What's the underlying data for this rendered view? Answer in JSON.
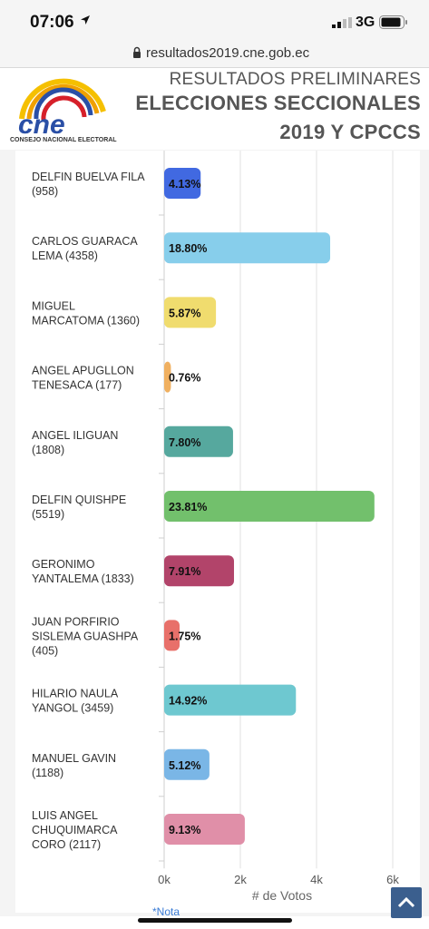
{
  "status_bar": {
    "time": "07:06",
    "network": "3G"
  },
  "browser": {
    "url": "resultados2019.cne.gob.ec"
  },
  "header": {
    "logo_text": "cne",
    "logo_subtitle": "CONSEJO NACIONAL ELECTORAL",
    "line1": "RESULTADOS PRELIMINARES",
    "line2": "ELECCIONES SECCIONALES",
    "line3": "2019 Y CPCCS"
  },
  "footer": {
    "note": "*Nota"
  },
  "icons": {
    "location": "location-arrow-icon",
    "signal": "signal-icon",
    "battery": "battery-icon",
    "lock": "lock-icon",
    "scroll_top": "chevron-up-icon"
  },
  "colors": {
    "header_text": "#555555",
    "accent": "#3b5f8e"
  },
  "chart_data": {
    "type": "bar",
    "orientation": "horizontal",
    "xlabel": "# de Votos",
    "xlim": [
      0,
      6000
    ],
    "xticks": [
      "0k",
      "2k",
      "4k",
      "6k"
    ],
    "grid": true,
    "categories": [
      {
        "lines": [
          "DELFIN BUELVA FILA",
          "(958)"
        ],
        "votes": 958,
        "label": "4.13%",
        "color": "#4169e1"
      },
      {
        "lines": [
          "CARLOS GUARACA",
          "LEMA (4358)"
        ],
        "votes": 4358,
        "label": "18.80%",
        "color": "#87ceeb"
      },
      {
        "lines": [
          "MIGUEL",
          "MARCATOMA (1360)"
        ],
        "votes": 1360,
        "label": "5.87%",
        "color": "#f0dc6e"
      },
      {
        "lines": [
          "ANGEL APUGLLON",
          "TENESACA (177)"
        ],
        "votes": 177,
        "label": "0.76%",
        "color": "#f0b060"
      },
      {
        "lines": [
          "ANGEL ILIGUAN",
          "(1808)"
        ],
        "votes": 1808,
        "label": "7.80%",
        "color": "#56a89e"
      },
      {
        "lines": [
          "DELFIN QUISHPE",
          "(5519)"
        ],
        "votes": 5519,
        "label": "23.81%",
        "color": "#72c06c"
      },
      {
        "lines": [
          "GERONIMO",
          "YANTALEMA (1833)"
        ],
        "votes": 1833,
        "label": "7.91%",
        "color": "#b2446a"
      },
      {
        "lines": [
          "JUAN PORFIRIO",
          "SISLEMA GUASHPA",
          "(405)"
        ],
        "votes": 405,
        "label": "1.75%",
        "color": "#e8706a"
      },
      {
        "lines": [
          "HILARIO NAULA",
          "YANGOL (3459)"
        ],
        "votes": 3459,
        "label": "14.92%",
        "color": "#6ec8d0"
      },
      {
        "lines": [
          "MANUEL GAVIN",
          "(1188)"
        ],
        "votes": 1188,
        "label": "5.12%",
        "color": "#7ab6e6"
      },
      {
        "lines": [
          "LUIS ANGEL",
          "CHUQUIMARCA",
          "CORO (2117)"
        ],
        "votes": 2117,
        "label": "9.13%",
        "color": "#e08fa8"
      }
    ]
  }
}
